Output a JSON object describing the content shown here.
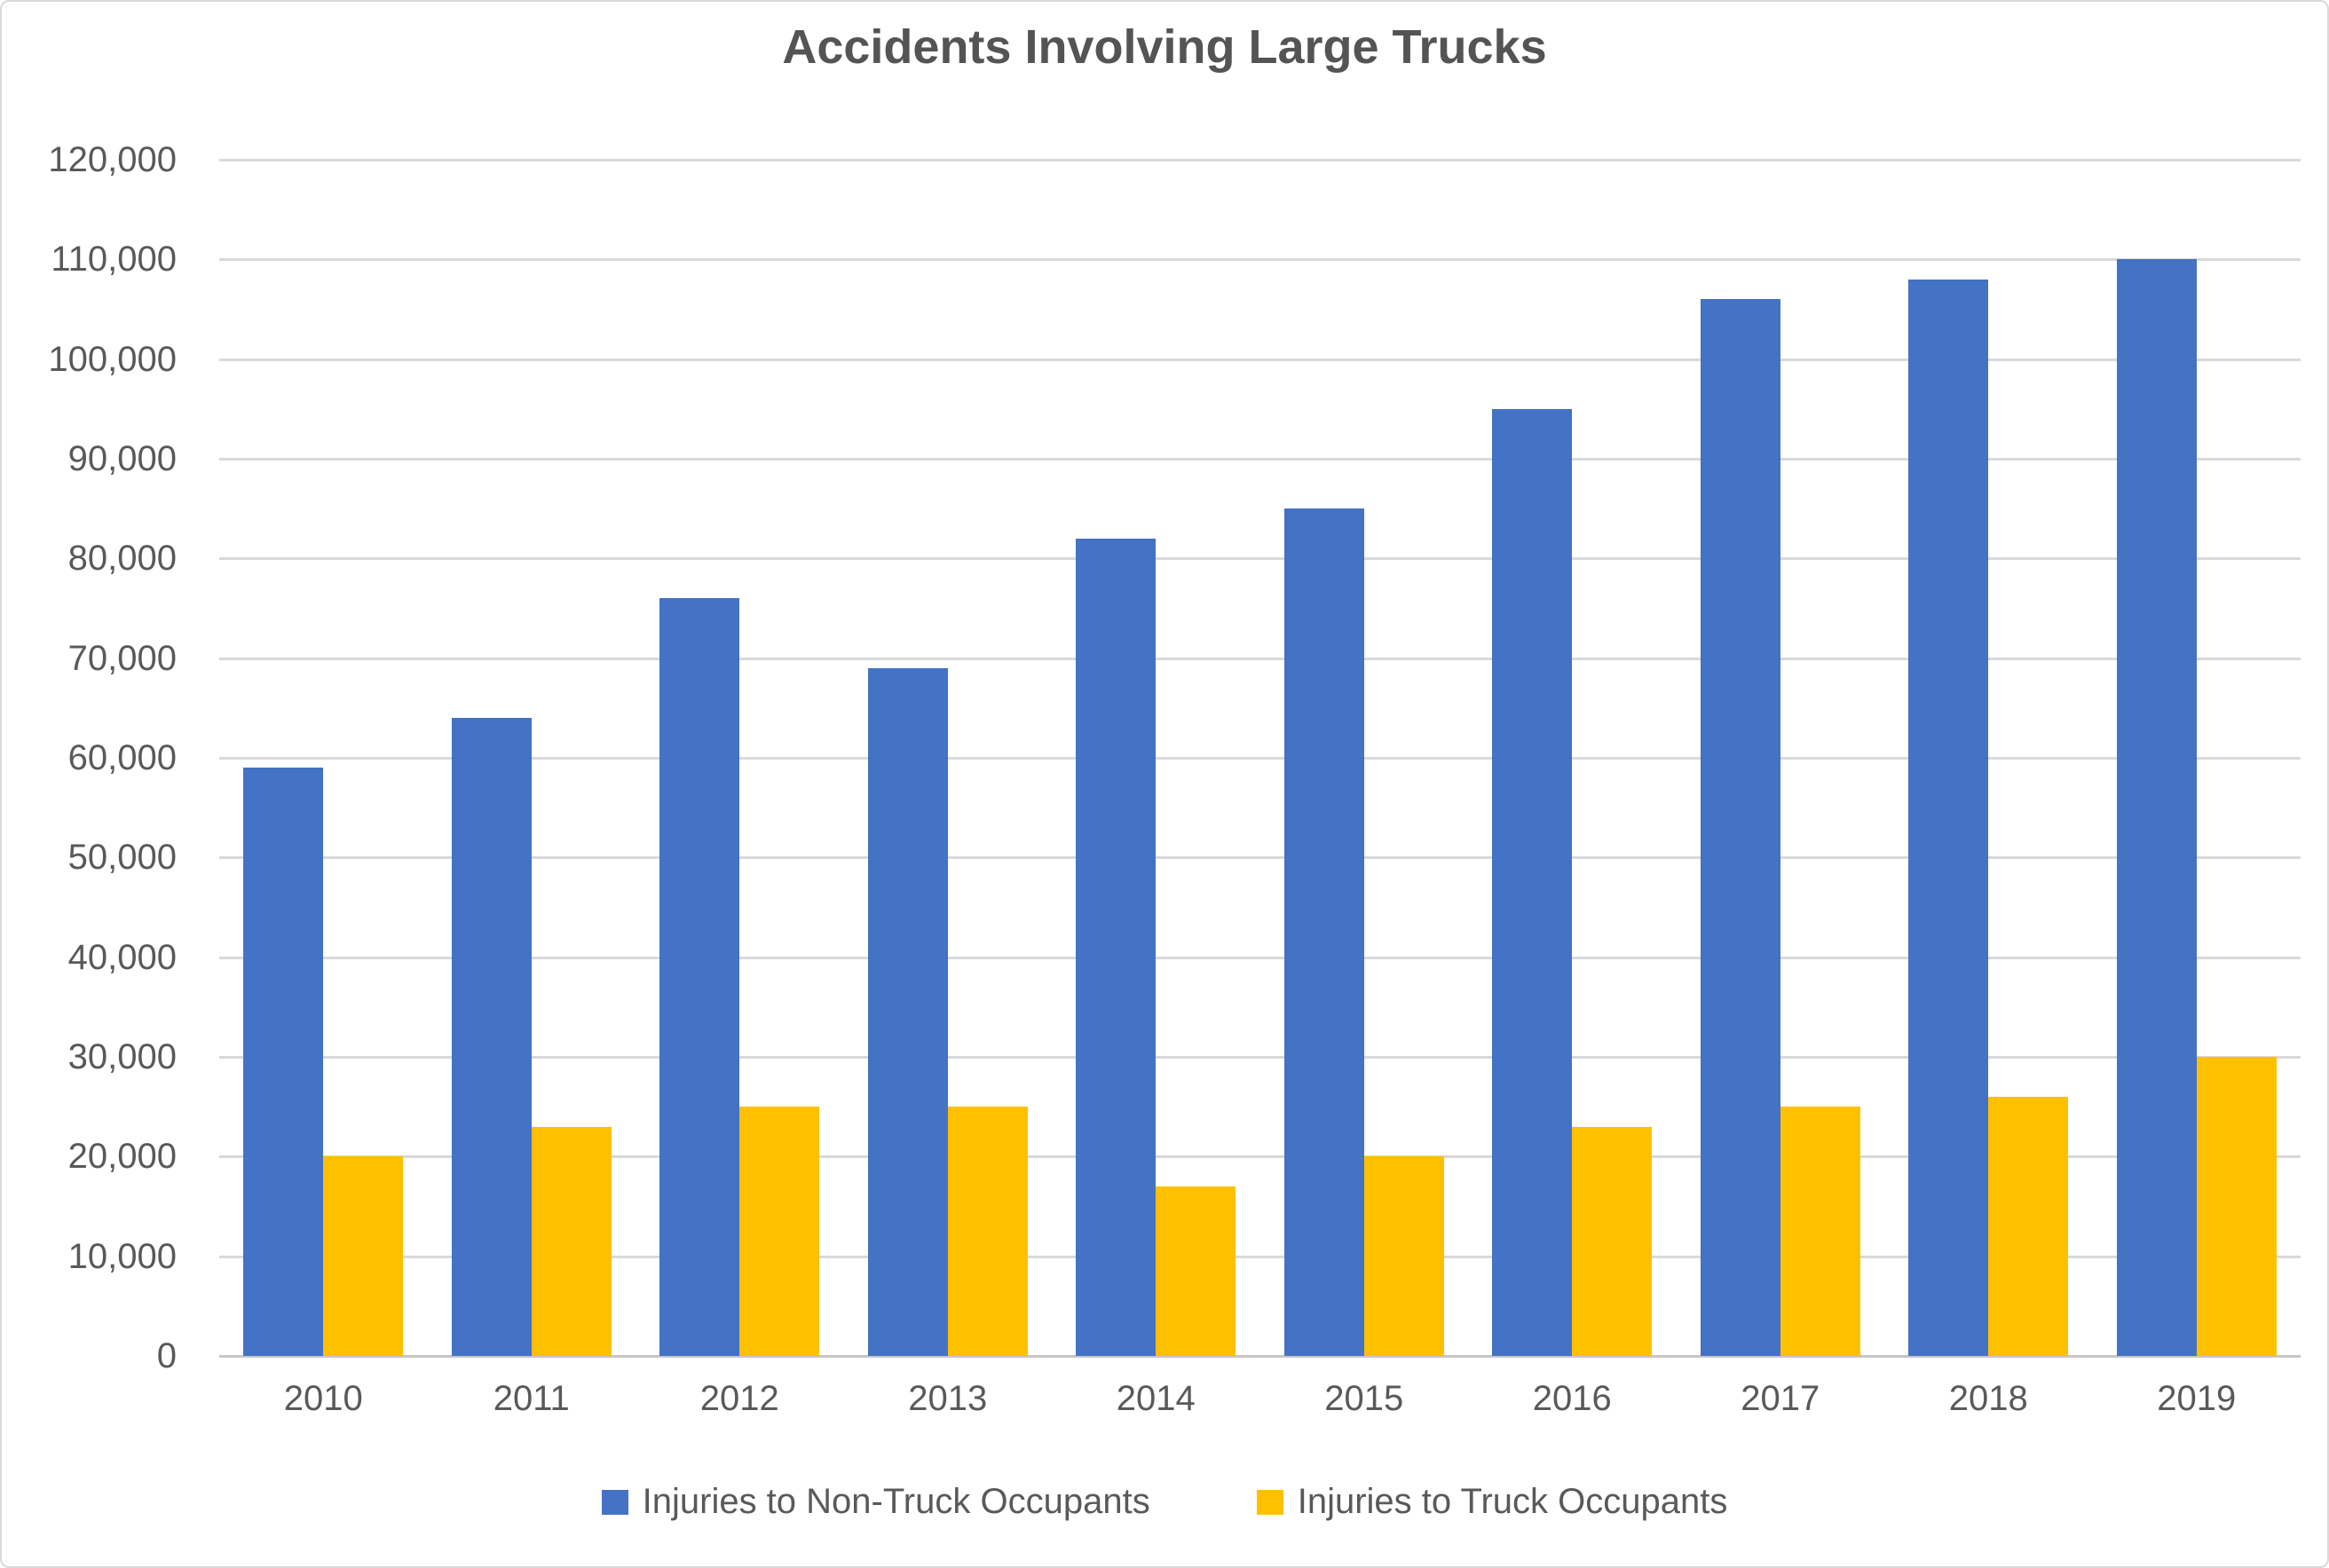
{
  "chart_data": {
    "type": "bar",
    "title": "Accidents Involving Large Trucks",
    "categories": [
      "2010",
      "2011",
      "2012",
      "2013",
      "2014",
      "2015",
      "2016",
      "2017",
      "2018",
      "2019"
    ],
    "series": [
      {
        "name": "Injuries to Non-Truck Occupants",
        "color": "#4472C4",
        "values": [
          59000,
          64000,
          76000,
          69000,
          82000,
          85000,
          95000,
          106000,
          108000,
          110000
        ]
      },
      {
        "name": "Injuries to Truck Occupants",
        "color": "#FFC000",
        "values": [
          20000,
          23000,
          25000,
          25000,
          17000,
          20000,
          23000,
          25000,
          26000,
          30000
        ]
      }
    ],
    "xlabel": "",
    "ylabel": "",
    "ylim": [
      0,
      120000
    ],
    "ytick_step": 10000,
    "ytick_labels": [
      "0",
      "10,000",
      "20,000",
      "30,000",
      "40,000",
      "50,000",
      "60,000",
      "70,000",
      "80,000",
      "90,000",
      "100,000",
      "110,000",
      "120,000"
    ],
    "grid": true,
    "legend_position": "bottom"
  },
  "colors": {
    "background": "#FFFFFF",
    "gridline": "#D9D9D9",
    "axis_line": "#C6C6C6",
    "text": "#595959",
    "title_text": "#545454",
    "chart_border": "#D9D9D9"
  }
}
